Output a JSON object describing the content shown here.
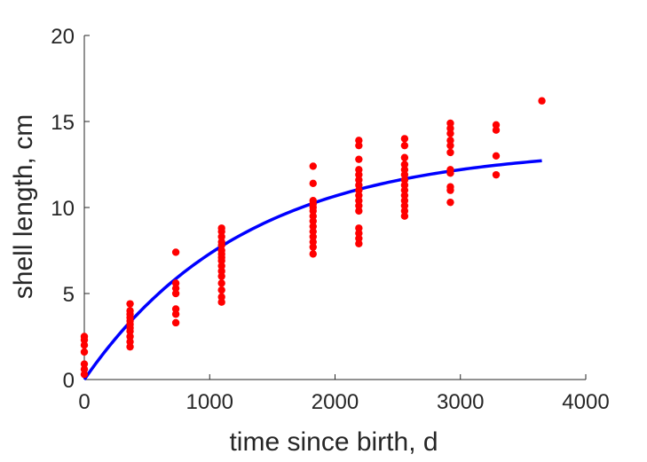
{
  "chart_data": {
    "type": "scatter",
    "title": "",
    "xlabel": "time since birth, d",
    "ylabel": "shell length, cm",
    "xlim": [
      0,
      4000
    ],
    "ylim": [
      0,
      20
    ],
    "xticks": [
      "0",
      "1000",
      "2000",
      "3000",
      "4000"
    ],
    "yticks": [
      "0",
      "5",
      "10",
      "15",
      "20"
    ],
    "grid": false,
    "legend": "none",
    "colors": {
      "points": "#ff0000",
      "curve": "#0000ff",
      "axis": "#262626"
    },
    "series": [
      {
        "type": "scatter",
        "points": [
          [
            0,
            0.3
          ],
          [
            0,
            0.6
          ],
          [
            0,
            0.9
          ],
          [
            0,
            1.6
          ],
          [
            0,
            2.0
          ],
          [
            0,
            2.3
          ],
          [
            0,
            2.5
          ],
          [
            365,
            1.9
          ],
          [
            365,
            2.2
          ],
          [
            365,
            2.5
          ],
          [
            365,
            2.8
          ],
          [
            365,
            3.0
          ],
          [
            365,
            3.2
          ],
          [
            365,
            3.4
          ],
          [
            365,
            3.6
          ],
          [
            365,
            3.8
          ],
          [
            365,
            4.0
          ],
          [
            365,
            4.4
          ],
          [
            730,
            3.3
          ],
          [
            730,
            3.8
          ],
          [
            730,
            4.1
          ],
          [
            730,
            5.0
          ],
          [
            730,
            5.3
          ],
          [
            730,
            5.6
          ],
          [
            730,
            7.4
          ],
          [
            1095,
            4.5
          ],
          [
            1095,
            4.8
          ],
          [
            1095,
            5.2
          ],
          [
            1095,
            5.6
          ],
          [
            1095,
            6.0
          ],
          [
            1095,
            6.3
          ],
          [
            1095,
            6.6
          ],
          [
            1095,
            6.9
          ],
          [
            1095,
            7.1
          ],
          [
            1095,
            7.3
          ],
          [
            1095,
            7.5
          ],
          [
            1095,
            7.8
          ],
          [
            1095,
            8.0
          ],
          [
            1095,
            8.3
          ],
          [
            1095,
            8.6
          ],
          [
            1095,
            8.8
          ],
          [
            1825,
            7.3
          ],
          [
            1825,
            7.7
          ],
          [
            1825,
            8.0
          ],
          [
            1825,
            8.3
          ],
          [
            1825,
            8.6
          ],
          [
            1825,
            8.9
          ],
          [
            1825,
            9.2
          ],
          [
            1825,
            9.5
          ],
          [
            1825,
            9.8
          ],
          [
            1825,
            10.0
          ],
          [
            1825,
            10.2
          ],
          [
            1825,
            10.4
          ],
          [
            1825,
            11.4
          ],
          [
            1825,
            12.4
          ],
          [
            2190,
            7.9
          ],
          [
            2190,
            8.2
          ],
          [
            2190,
            8.5
          ],
          [
            2190,
            8.8
          ],
          [
            2190,
            9.8
          ],
          [
            2190,
            10.1
          ],
          [
            2190,
            10.4
          ],
          [
            2190,
            10.7
          ],
          [
            2190,
            11.0
          ],
          [
            2190,
            11.3
          ],
          [
            2190,
            11.6
          ],
          [
            2190,
            11.9
          ],
          [
            2190,
            12.2
          ],
          [
            2190,
            12.8
          ],
          [
            2190,
            13.6
          ],
          [
            2190,
            13.9
          ],
          [
            2555,
            9.5
          ],
          [
            2555,
            9.8
          ],
          [
            2555,
            10.1
          ],
          [
            2555,
            10.4
          ],
          [
            2555,
            10.7
          ],
          [
            2555,
            11.0
          ],
          [
            2555,
            11.3
          ],
          [
            2555,
            11.6
          ],
          [
            2555,
            11.9
          ],
          [
            2555,
            12.2
          ],
          [
            2555,
            12.5
          ],
          [
            2555,
            12.9
          ],
          [
            2555,
            13.6
          ],
          [
            2555,
            14.0
          ],
          [
            2920,
            10.3
          ],
          [
            2920,
            11.0
          ],
          [
            2920,
            11.2
          ],
          [
            2920,
            12.0
          ],
          [
            2920,
            12.2
          ],
          [
            2920,
            13.2
          ],
          [
            2920,
            13.6
          ],
          [
            2920,
            13.9
          ],
          [
            2920,
            14.3
          ],
          [
            2920,
            14.6
          ],
          [
            2920,
            14.9
          ],
          [
            3285,
            11.9
          ],
          [
            3285,
            13.0
          ],
          [
            3285,
            14.5
          ],
          [
            3285,
            14.8
          ],
          [
            3650,
            16.2
          ]
        ]
      },
      {
        "type": "line",
        "model": "L = Linf - (Linf - L0) * exp(-k * t)",
        "params": {
          "Linf": 13.5,
          "L0": 0,
          "k": 0.00078
        },
        "x_range": [
          0,
          3650
        ]
      }
    ]
  }
}
